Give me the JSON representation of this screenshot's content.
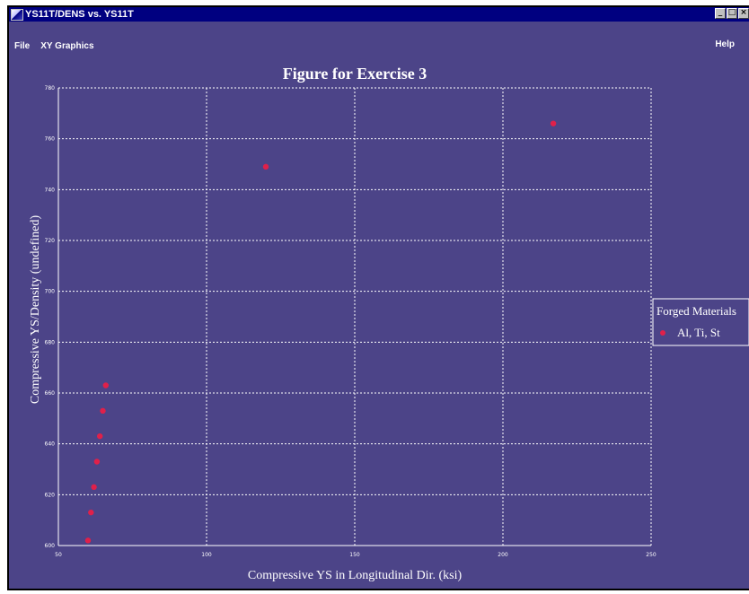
{
  "window": {
    "title": "YS11T/DENS vs. YS11T",
    "controls": [
      "_",
      "□",
      "×"
    ]
  },
  "menu": {
    "file": "File",
    "xy_graphics": "XY Graphics",
    "help": "Help"
  },
  "colors": {
    "background": "#4c4488",
    "titlebar": "#000080",
    "point": "#e0204a",
    "grid": "#ffffff",
    "text": "#ffffff"
  },
  "chart_data": {
    "type": "scatter",
    "title": "Figure for Exercise 3",
    "xlabel": "Compressive YS in Longitudinal Dir. (ksi)",
    "ylabel": "Compressive YS/Density (undefined)",
    "xlim": [
      50,
      250
    ],
    "ylim": [
      600,
      780
    ],
    "xticks": [
      "50",
      "100",
      "150",
      "200",
      "250"
    ],
    "yticks": [
      "600",
      "620",
      "640",
      "660",
      "680",
      "700",
      "720",
      "740",
      "760",
      "780"
    ],
    "grid": true,
    "legend_position": "right",
    "legend_title": "Forged Materials",
    "series": [
      {
        "name": "Al, Ti, St",
        "x": [
          60,
          61,
          62,
          63,
          64,
          65,
          66,
          120,
          217
        ],
        "y": [
          602,
          613,
          623,
          633,
          643,
          653,
          663,
          749,
          766
        ]
      }
    ]
  }
}
